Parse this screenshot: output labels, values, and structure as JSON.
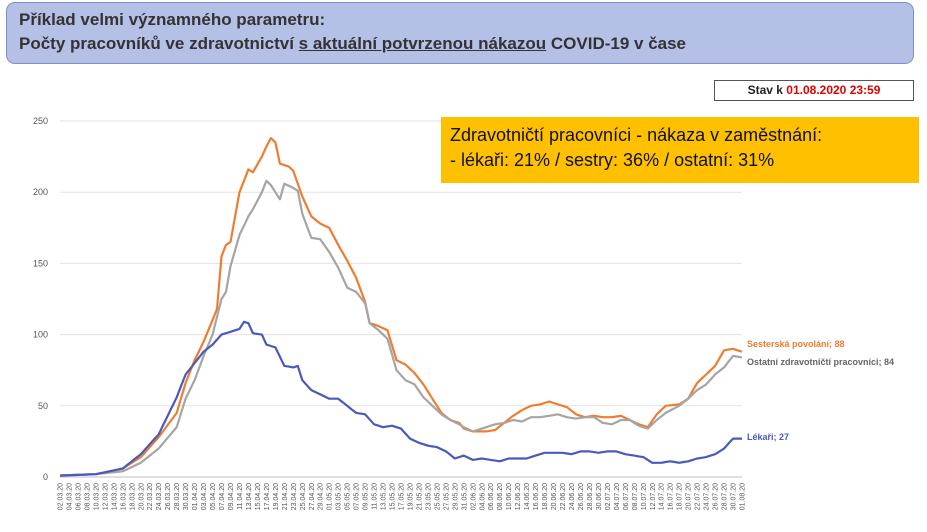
{
  "header": {
    "line1": "Příklad velmi významného parametru:",
    "line2_pre": "Počty pracovníků ve zdravotnictví ",
    "line2_underlined": "s aktuální potvrzenou nákazou",
    "line2_post": " COVID-19 v čase"
  },
  "status": {
    "prefix": "Stav k ",
    "date": "01.08.2020 23:59"
  },
  "note": {
    "line1": "Zdravotničtí pracovníci - nákaza v zaměstnání:",
    "line2": "- lékaři: 21% / sestry: 36% / ostatní: 31%"
  },
  "chart_data": {
    "type": "line",
    "x_start": "02.03.2020",
    "x_end": "01.08.2020",
    "x_tick_labels": [
      "02.03.20",
      "04.03.20",
      "06.03.20",
      "08.03.20",
      "10.03.20",
      "12.03.20",
      "14.03.20",
      "16.03.20",
      "18.03.20",
      "20.03.20",
      "22.03.20",
      "24.03.20",
      "26.03.20",
      "28.03.20",
      "30.03.20",
      "01.04.20",
      "03.04.20",
      "05.04.20",
      "07.04.20",
      "09.04.20",
      "11.04.20",
      "13.04.20",
      "15.04.20",
      "17.04.20",
      "19.04.20",
      "21.04.20",
      "23.04.20",
      "25.04.20",
      "27.04.20",
      "29.04.20",
      "01.05.20",
      "03.05.20",
      "05.05.20",
      "07.05.20",
      "09.05.20",
      "11.05.20",
      "13.05.20",
      "15.05.20",
      "17.05.20",
      "19.05.20",
      "21.05.20",
      "23.05.20",
      "25.05.20",
      "27.05.20",
      "29.05.20",
      "31.05.20",
      "02.06.20",
      "04.06.20",
      "06.06.20",
      "08.06.20",
      "10.06.20",
      "12.06.20",
      "14.06.20",
      "16.06.20",
      "18.06.20",
      "20.06.20",
      "22.06.20",
      "24.06.20",
      "26.06.20",
      "28.06.20",
      "30.06.20",
      "02.07.20",
      "04.07.20",
      "06.07.20",
      "08.07.20",
      "10.07.20",
      "12.07.20",
      "14.07.20",
      "16.07.20",
      "18.07.20",
      "20.07.20",
      "22.07.20",
      "24.07.20",
      "26.07.20",
      "28.07.20",
      "30.07.20",
      "01.08.20"
    ],
    "y_ticks": [
      "0",
      "50",
      "100",
      "150",
      "200",
      "250"
    ],
    "ylim": [
      0,
      250
    ],
    "grid": "horizontal",
    "series": [
      {
        "name": "Sesterská povolání",
        "label": "Sesterská povolání; 88",
        "color": "#ed7d31",
        "keypoints": [
          [
            0,
            1
          ],
          [
            8,
            2
          ],
          [
            14,
            6
          ],
          [
            18,
            14
          ],
          [
            22,
            28
          ],
          [
            26,
            45
          ],
          [
            28,
            66
          ],
          [
            30,
            82
          ],
          [
            32,
            95
          ],
          [
            35,
            118
          ],
          [
            36,
            155
          ],
          [
            37,
            163
          ],
          [
            38,
            165
          ],
          [
            40,
            200
          ],
          [
            42,
            216
          ],
          [
            43,
            214
          ],
          [
            45,
            225
          ],
          [
            46,
            232
          ],
          [
            47,
            238
          ],
          [
            48,
            235
          ],
          [
            49,
            220
          ],
          [
            51,
            218
          ],
          [
            52,
            215
          ],
          [
            54,
            197
          ],
          [
            56,
            183
          ],
          [
            58,
            178
          ],
          [
            60,
            175
          ],
          [
            62,
            163
          ],
          [
            64,
            152
          ],
          [
            66,
            140
          ],
          [
            68,
            123
          ],
          [
            69,
            108
          ],
          [
            71,
            106
          ],
          [
            73,
            103
          ],
          [
            75,
            82
          ],
          [
            77,
            79
          ],
          [
            79,
            73
          ],
          [
            81,
            65
          ],
          [
            83,
            55
          ],
          [
            85,
            45
          ],
          [
            87,
            40
          ],
          [
            89,
            38
          ],
          [
            90,
            34
          ],
          [
            92,
            32
          ],
          [
            95,
            32
          ],
          [
            97,
            33
          ],
          [
            99,
            38
          ],
          [
            101,
            43
          ],
          [
            103,
            47
          ],
          [
            105,
            50
          ],
          [
            107,
            51
          ],
          [
            109,
            53
          ],
          [
            111,
            51
          ],
          [
            113,
            49
          ],
          [
            115,
            44
          ],
          [
            117,
            42
          ],
          [
            119,
            43
          ],
          [
            121,
            42
          ],
          [
            123,
            42
          ],
          [
            125,
            43
          ],
          [
            127,
            40
          ],
          [
            129,
            37
          ],
          [
            131,
            35
          ],
          [
            133,
            44
          ],
          [
            135,
            50
          ],
          [
            138,
            51
          ],
          [
            140,
            55
          ],
          [
            142,
            66
          ],
          [
            144,
            72
          ],
          [
            146,
            78
          ],
          [
            148,
            89
          ],
          [
            150,
            90
          ],
          [
            152,
            88
          ]
        ]
      },
      {
        "name": "Ostatní zdravotničtí pracovníci",
        "label": "Ostatní zdravotničtí pracovníci; 84",
        "color": "#a5a5a5",
        "keypoints": [
          [
            0,
            1
          ],
          [
            8,
            2
          ],
          [
            14,
            4
          ],
          [
            18,
            10
          ],
          [
            22,
            20
          ],
          [
            26,
            35
          ],
          [
            28,
            55
          ],
          [
            30,
            68
          ],
          [
            32,
            85
          ],
          [
            34,
            100
          ],
          [
            36,
            125
          ],
          [
            37,
            130
          ],
          [
            38,
            148
          ],
          [
            40,
            170
          ],
          [
            42,
            183
          ],
          [
            43,
            188
          ],
          [
            45,
            200
          ],
          [
            46,
            208
          ],
          [
            47,
            205
          ],
          [
            48,
            200
          ],
          [
            49,
            195
          ],
          [
            50,
            206
          ],
          [
            52,
            203
          ],
          [
            53,
            201
          ],
          [
            54,
            185
          ],
          [
            56,
            168
          ],
          [
            58,
            167
          ],
          [
            60,
            158
          ],
          [
            62,
            147
          ],
          [
            64,
            133
          ],
          [
            66,
            130
          ],
          [
            68,
            122
          ],
          [
            69,
            108
          ],
          [
            71,
            103
          ],
          [
            73,
            97
          ],
          [
            75,
            75
          ],
          [
            77,
            68
          ],
          [
            79,
            65
          ],
          [
            81,
            56
          ],
          [
            83,
            50
          ],
          [
            85,
            44
          ],
          [
            87,
            40
          ],
          [
            89,
            37
          ],
          [
            90,
            35
          ],
          [
            92,
            32
          ],
          [
            94,
            34
          ],
          [
            95,
            35
          ],
          [
            97,
            37
          ],
          [
            99,
            38
          ],
          [
            101,
            40
          ],
          [
            103,
            39
          ],
          [
            105,
            42
          ],
          [
            107,
            42
          ],
          [
            109,
            43
          ],
          [
            111,
            44
          ],
          [
            113,
            42
          ],
          [
            115,
            41
          ],
          [
            117,
            42
          ],
          [
            119,
            42
          ],
          [
            121,
            38
          ],
          [
            123,
            37
          ],
          [
            125,
            40
          ],
          [
            127,
            40
          ],
          [
            129,
            36
          ],
          [
            131,
            34
          ],
          [
            133,
            40
          ],
          [
            135,
            45
          ],
          [
            138,
            50
          ],
          [
            140,
            55
          ],
          [
            142,
            61
          ],
          [
            144,
            65
          ],
          [
            146,
            72
          ],
          [
            148,
            77
          ],
          [
            150,
            85
          ],
          [
            152,
            84
          ]
        ]
      },
      {
        "name": "Lékaři",
        "label": "Lékaři; 27",
        "color": "#4a5abb",
        "keypoints": [
          [
            0,
            1
          ],
          [
            8,
            2
          ],
          [
            14,
            6
          ],
          [
            18,
            16
          ],
          [
            22,
            30
          ],
          [
            26,
            56
          ],
          [
            28,
            72
          ],
          [
            30,
            80
          ],
          [
            32,
            88
          ],
          [
            34,
            93
          ],
          [
            36,
            100
          ],
          [
            38,
            102
          ],
          [
            40,
            104
          ],
          [
            41,
            109
          ],
          [
            42,
            108
          ],
          [
            43,
            101
          ],
          [
            45,
            100
          ],
          [
            46,
            93
          ],
          [
            48,
            91
          ],
          [
            50,
            78
          ],
          [
            52,
            77
          ],
          [
            53,
            78
          ],
          [
            54,
            68
          ],
          [
            56,
            61
          ],
          [
            58,
            58
          ],
          [
            60,
            55
          ],
          [
            62,
            55
          ],
          [
            64,
            50
          ],
          [
            66,
            45
          ],
          [
            68,
            44
          ],
          [
            70,
            37
          ],
          [
            72,
            35
          ],
          [
            74,
            36
          ],
          [
            76,
            34
          ],
          [
            78,
            27
          ],
          [
            80,
            24
          ],
          [
            82,
            22
          ],
          [
            84,
            21
          ],
          [
            86,
            18
          ],
          [
            88,
            13
          ],
          [
            90,
            15
          ],
          [
            92,
            12
          ],
          [
            94,
            13
          ],
          [
            96,
            12
          ],
          [
            98,
            11
          ],
          [
            100,
            13
          ],
          [
            102,
            13
          ],
          [
            104,
            13
          ],
          [
            106,
            15
          ],
          [
            108,
            17
          ],
          [
            110,
            17
          ],
          [
            112,
            17
          ],
          [
            114,
            16
          ],
          [
            116,
            18
          ],
          [
            118,
            18
          ],
          [
            120,
            17
          ],
          [
            122,
            18
          ],
          [
            124,
            18
          ],
          [
            126,
            16
          ],
          [
            128,
            15
          ],
          [
            130,
            14
          ],
          [
            132,
            10
          ],
          [
            134,
            10
          ],
          [
            136,
            11
          ],
          [
            138,
            10
          ],
          [
            140,
            11
          ],
          [
            142,
            13
          ],
          [
            144,
            14
          ],
          [
            146,
            16
          ],
          [
            148,
            20
          ],
          [
            150,
            27
          ],
          [
            152,
            27
          ]
        ]
      }
    ]
  }
}
